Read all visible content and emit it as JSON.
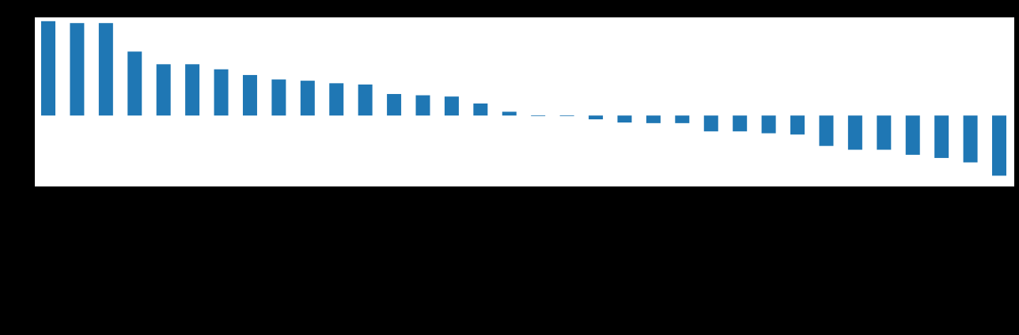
{
  "chart_data": {
    "type": "bar",
    "title": "",
    "xlabel": "",
    "ylabel": "",
    "bar_color": "#1f77b4",
    "plot_background": "#ffffff",
    "page_background": "#000000",
    "grid": false,
    "legend": "none",
    "ylim": [
      -1.12,
      1.55
    ],
    "values": [
      1.49,
      1.46,
      1.46,
      1.01,
      0.81,
      0.81,
      0.73,
      0.64,
      0.57,
      0.55,
      0.51,
      0.49,
      0.34,
      0.32,
      0.3,
      0.19,
      0.06,
      -0.01,
      -0.01,
      -0.06,
      -0.11,
      -0.12,
      -0.12,
      -0.25,
      -0.25,
      -0.28,
      -0.3,
      -0.48,
      -0.54,
      -0.54,
      -0.62,
      -0.67,
      -0.74,
      -0.95
    ]
  }
}
